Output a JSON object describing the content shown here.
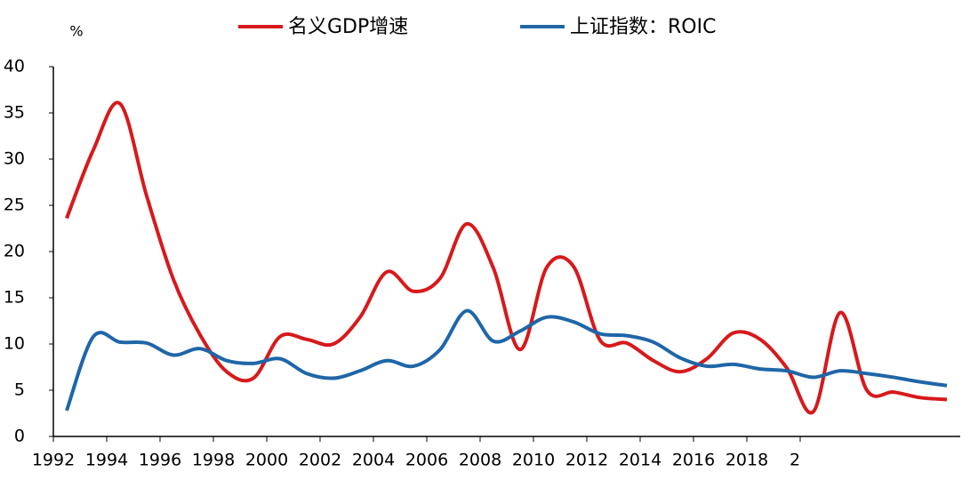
{
  "chart_data": {
    "type": "line",
    "y_label": "%",
    "x": [
      1992.5,
      1993.5,
      1994.5,
      1995.5,
      1996.5,
      1997.5,
      1998.5,
      1999.5,
      2000.5,
      2001.5,
      2002.5,
      2003.5,
      2004.5,
      2005.5,
      2006.5,
      2007.5,
      2008.5,
      2009.5,
      2010.5,
      2011.5,
      2012.5,
      2013.5,
      2014.5,
      2015.5,
      2016.5,
      2017.5,
      2018.5,
      2019.5,
      2020.5,
      2021.5,
      2022.5,
      2023.5,
      2024.5,
      2025.5
    ],
    "series": [
      {
        "name": "名义GDP增速",
        "color": "#d7191c",
        "values": [
          23.6,
          31,
          36,
          26,
          17,
          11,
          7,
          6.3,
          10.8,
          10.5,
          10,
          12.9,
          17.8,
          15.7,
          17.1,
          23,
          18.2,
          9.4,
          18.3,
          18.4,
          10.4,
          10.1,
          8.2,
          7,
          8.4,
          11.2,
          10.5,
          7.4,
          2.7,
          13.4,
          5,
          4.8,
          4.2,
          4.0
        ]
      },
      {
        "name": "上证指数：ROIC",
        "color": "#1f66a8",
        "values": [
          2.8,
          10.8,
          10.2,
          10.1,
          8.8,
          9.5,
          8.2,
          7.9,
          8.4,
          6.8,
          6.3,
          7.1,
          8.2,
          7.6,
          9.4,
          13.6,
          10.3,
          11.4,
          12.9,
          12.4,
          11.1,
          10.9,
          10.2,
          8.5,
          7.6,
          7.8,
          7.3,
          7.1,
          6.4,
          7.1,
          6.8,
          6.4,
          5.9,
          5.5
        ]
      }
    ],
    "xlim": [
      1992,
      2026
    ],
    "xticks": [
      1992,
      1994,
      1996,
      1998,
      2000,
      2002,
      2004,
      2006,
      2008,
      2010,
      2012,
      2014,
      2016,
      2018,
      {
        "value": 2020,
        "label": "2"
      }
    ],
    "ylim": [
      0,
      40
    ],
    "yticks": [
      0,
      5,
      10,
      15,
      20,
      25,
      30,
      35,
      40
    ]
  }
}
